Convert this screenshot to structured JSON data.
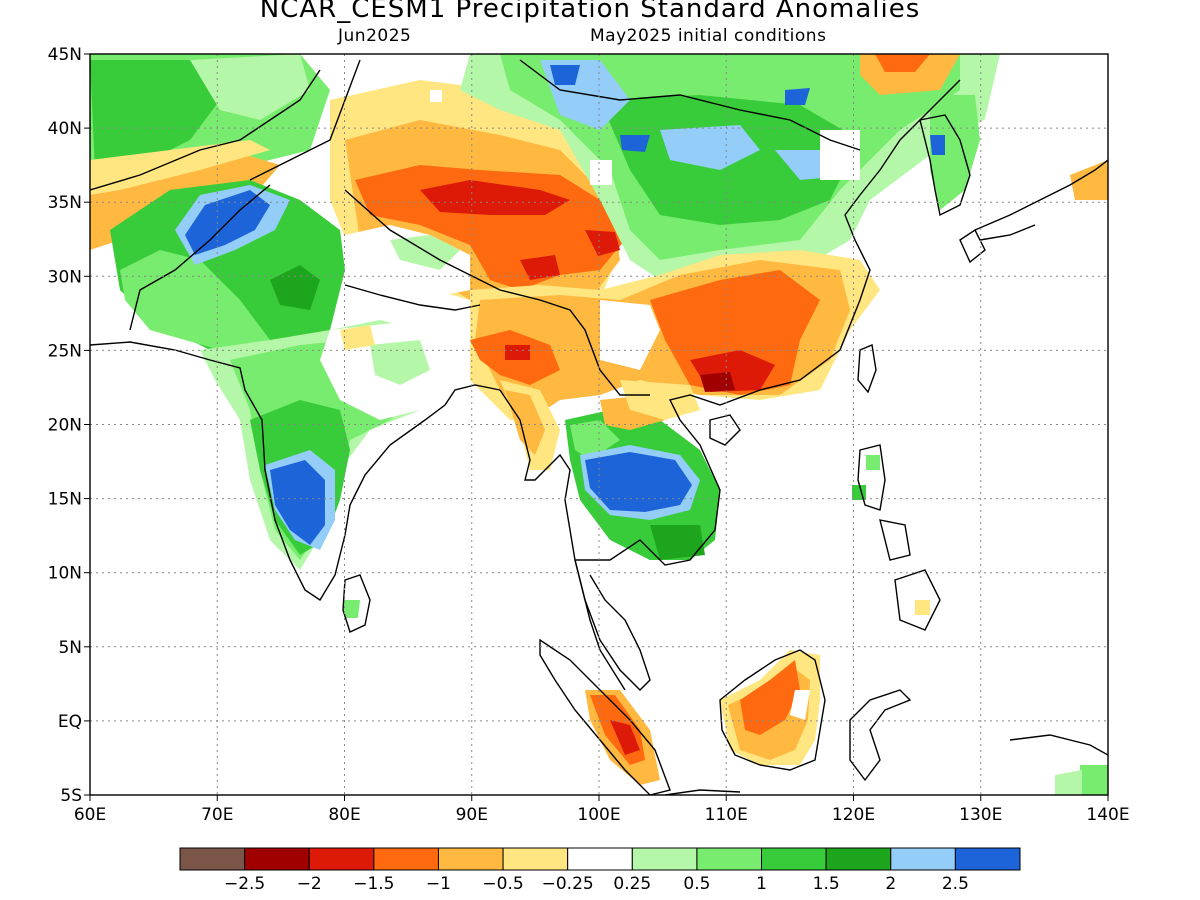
{
  "title": "NCAR_CESM1 Precipitation Standard Anomalies",
  "subtitle_left": "Jun2025",
  "subtitle_right": "May2025 initial conditions",
  "axes": {
    "x_ticks": [
      "60E",
      "70E",
      "80E",
      "90E",
      "100E",
      "110E",
      "120E",
      "130E",
      "140E"
    ],
    "y_ticks": [
      "45N",
      "40N",
      "35N",
      "30N",
      "25N",
      "20N",
      "15N",
      "10N",
      "5N",
      "EQ",
      "5S"
    ],
    "lon_range": [
      60,
      140
    ],
    "lat_range": [
      -5,
      45
    ],
    "grid": "dotted"
  },
  "colorbar": {
    "labels": [
      "−2.5",
      "−2",
      "−1.5",
      "−1",
      "−0.5",
      "−0.25",
      "0.25",
      "0.5",
      "1",
      "1.5",
      "2",
      "2.5"
    ],
    "colors": [
      "#7a5548",
      "#a00000",
      "#dd1a08",
      "#ff6a10",
      "#ffb840",
      "#ffe680",
      "#ffffff",
      "#b4f7a8",
      "#78ec6e",
      "#38cc3a",
      "#1ea51e",
      "#93cdf8",
      "#1c64d8"
    ]
  },
  "regions": [
    {
      "name": "central-asia-north-green",
      "level": "1",
      "color": "#78ec6e",
      "lon": [
        60,
        70
      ],
      "lat": [
        38,
        45
      ]
    },
    {
      "name": "pakistan-blue",
      "level": "2.5",
      "color": "#1c64d8",
      "lon": [
        67,
        73
      ],
      "lat": [
        32,
        36
      ]
    },
    {
      "name": "tibet-red",
      "level": "-1.5",
      "color": "#ff6a10",
      "lon": [
        84,
        102
      ],
      "lat": [
        29,
        37
      ]
    },
    {
      "name": "mongolia-green",
      "level": "1.5",
      "color": "#38cc3a",
      "lon": [
        101,
        122
      ],
      "lat": [
        32,
        45
      ]
    },
    {
      "name": "south-china-red",
      "level": "-1.5",
      "color": "#ff6a10",
      "lon": [
        106,
        116
      ],
      "lat": [
        21,
        28
      ]
    },
    {
      "name": "south-india-blue",
      "level": "2.5",
      "color": "#1c64d8",
      "lon": [
        74,
        78
      ],
      "lat": [
        12,
        17
      ]
    },
    {
      "name": "indochina-blue",
      "level": "2.5",
      "color": "#1c64d8",
      "lon": [
        100,
        108
      ],
      "lat": [
        14,
        17
      ]
    },
    {
      "name": "borneo-orange",
      "level": "-1",
      "color": "#ffb840",
      "lon": [
        109,
        118
      ],
      "lat": [
        -3,
        4
      ]
    },
    {
      "name": "sumatra-red",
      "level": "-1.5",
      "color": "#ff6a10",
      "lon": [
        98,
        105
      ],
      "lat": [
        -4,
        2
      ]
    }
  ]
}
